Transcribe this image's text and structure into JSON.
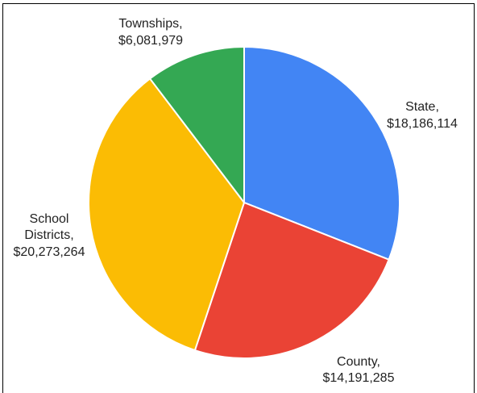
{
  "chart_data": {
    "type": "pie",
    "title": "",
    "start_angle_deg": 0,
    "direction": "clockwise",
    "slices": [
      {
        "label_line1": "State,",
        "label_line2": "$18,186,114",
        "value": 18186114,
        "color": "#4285f4"
      },
      {
        "label_line1": "County,",
        "label_line2": "$14,191,285",
        "value": 14191285,
        "color": "#ea4335"
      },
      {
        "label_line1": "School",
        "label_line2": "Districts,",
        "label_line3": "$20,273,264",
        "value": 20273264,
        "color": "#fbbc04"
      },
      {
        "label_line1": "Townships,",
        "label_line2": "$6,081,979",
        "value": 6081979,
        "color": "#34a853"
      }
    ],
    "slice_border_color": "#ffffff",
    "legend": "none"
  }
}
